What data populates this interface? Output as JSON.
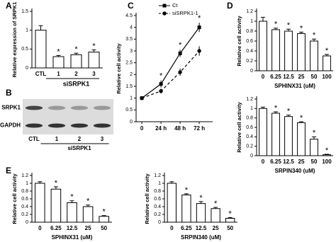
{
  "chart_data": [
    {
      "type": "bar",
      "panel": "A",
      "ylabel": "Relative expression of SRPK1",
      "categories": [
        "CTL",
        "1",
        "2",
        "3"
      ],
      "group_label": "siSRPK1",
      "values": [
        1,
        0.3,
        0.35,
        0.42
      ],
      "errors": [
        0.12,
        0.03,
        0.04,
        0.06
      ],
      "significance": [
        null,
        "*",
        "*",
        "*"
      ],
      "ylim": [
        0,
        1.5
      ],
      "yticks": [
        0,
        0.5,
        1,
        1.5
      ],
      "color": "#ffffff"
    },
    {
      "type": "blot",
      "panel": "B",
      "rows": [
        "SRPK1",
        "GAPDH"
      ],
      "lanes": [
        "CTL",
        "1",
        "2",
        "3"
      ],
      "group_label": "siSRPK1"
    },
    {
      "type": "line",
      "panel": "C",
      "ylabel": "Relative cell activity",
      "categories": [
        "0",
        "24 h",
        "48 h",
        "72 h"
      ],
      "series": [
        {
          "name": "Ct",
          "color": "#000000",
          "marker": "square",
          "dash": false,
          "values": [
            1,
            1.6,
            2.9,
            4.0
          ],
          "errors": [
            0.05,
            0.15,
            0.15,
            0.2
          ]
        },
        {
          "name": "siSRPK1-1",
          "color": "#000000",
          "marker": "circle",
          "dash": true,
          "values": [
            1,
            1.3,
            2.1,
            3.0
          ],
          "errors": [
            0.05,
            0.1,
            0.15,
            0.2
          ]
        }
      ],
      "significance": [
        null,
        "*",
        "*",
        "*"
      ],
      "ylim": [
        0,
        4.5
      ],
      "yticks": [
        0,
        0.5,
        1,
        1.5,
        2,
        2.5,
        3,
        3.5,
        4,
        4.5
      ],
      "legend": "upper left"
    },
    {
      "type": "bar",
      "panel": "D",
      "ylabel": "Relative cell activity",
      "xlabel": "SPHINX31 (uM)",
      "categories": [
        "0",
        "6.25",
        "12.5",
        "25",
        "50",
        "100"
      ],
      "values": [
        1,
        0.83,
        0.8,
        0.75,
        0.6,
        0.3
      ],
      "errors": [
        0.08,
        0.03,
        0.04,
        0.03,
        0.04,
        0.03
      ],
      "significance": [
        null,
        "*",
        "*",
        "*",
        "*",
        "*"
      ],
      "ylim": [
        0,
        1.2
      ],
      "yticks": [
        0,
        0.2,
        0.4,
        0.6,
        0.8,
        1,
        1.2
      ],
      "color": "#ffffff"
    },
    {
      "type": "bar",
      "ylabel": "Relative cell activity",
      "xlabel": "SRPIN340 (uM)",
      "categories": [
        "0",
        "6.25",
        "12.5",
        "25",
        "50",
        "100"
      ],
      "values": [
        1,
        0.9,
        0.83,
        0.7,
        0.35,
        0.02
      ],
      "errors": [
        0.03,
        0.03,
        0.03,
        0.02,
        0.05,
        0.01
      ],
      "significance": [
        null,
        "*",
        "*",
        "*",
        "*",
        "*"
      ],
      "ylim": [
        0,
        1.2
      ],
      "yticks": [
        0,
        0.2,
        0.4,
        0.6,
        0.8,
        1,
        1.2
      ],
      "color": "#ffffff"
    },
    {
      "type": "bar",
      "panel": "E",
      "ylabel": "Relative cell activity",
      "xlabel": "SPHINX31 (uM)",
      "categories": [
        "0",
        "6.25",
        "12.5",
        "25",
        "50"
      ],
      "values": [
        1,
        0.85,
        0.5,
        0.4,
        0.15
      ],
      "errors": [
        0.04,
        0.06,
        0.05,
        0.04,
        0.02
      ],
      "significance": [
        null,
        "*",
        "*",
        "*",
        "*"
      ],
      "ylim": [
        0,
        1.2
      ],
      "yticks": [
        0,
        0.2,
        0.4,
        0.6,
        0.8,
        1,
        1.2
      ],
      "color": "#ffffff"
    },
    {
      "type": "bar",
      "ylabel": "Relative cell activity",
      "xlabel": "SRPIN340 (uM)",
      "categories": [
        "0",
        "6.25",
        "12.5",
        "25",
        "50"
      ],
      "values": [
        1,
        0.7,
        0.48,
        0.35,
        0.1
      ],
      "errors": [
        0.04,
        0.03,
        0.05,
        0.03,
        0.02
      ],
      "significance": [
        null,
        "*",
        "*",
        "*",
        "*"
      ],
      "ylim": [
        0,
        1.2
      ],
      "yticks": [
        0,
        0.2,
        0.4,
        0.6,
        0.8,
        1,
        1.2
      ],
      "color": "#ffffff"
    }
  ]
}
